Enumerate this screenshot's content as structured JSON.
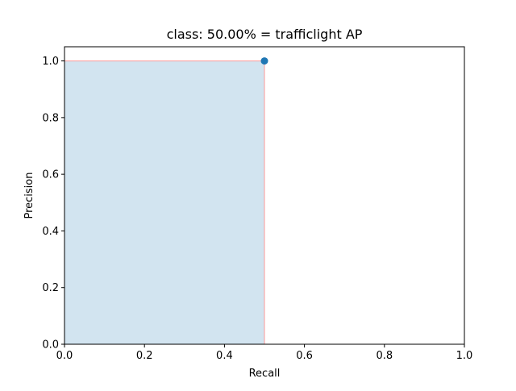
{
  "chart_data": {
    "type": "area",
    "title": "class: 50.00% = trafficlight AP",
    "xlabel": "Recall",
    "ylabel": "Precision",
    "xlim": [
      0.0,
      1.0
    ],
    "ylim": [
      0.0,
      1.05
    ],
    "xticks": [
      0.0,
      0.2,
      0.4,
      0.6,
      0.8,
      1.0
    ],
    "yticks": [
      0.0,
      0.2,
      0.4,
      0.6,
      0.8,
      1.0
    ],
    "xtick_labels": [
      "0.0",
      "0.2",
      "0.4",
      "0.6",
      "0.8",
      "1.0"
    ],
    "ytick_labels": [
      "0.0",
      "0.2",
      "0.4",
      "0.6",
      "0.8",
      "1.0"
    ],
    "grid": false,
    "points": [
      {
        "recall": 0.5,
        "precision": 1.0
      }
    ],
    "envelope": [
      {
        "recall": 0.0,
        "precision": 1.0
      },
      {
        "recall": 0.5,
        "precision": 1.0
      },
      {
        "recall": 0.5,
        "precision": 0.0
      }
    ],
    "colors": {
      "point": "#1f77b4",
      "fill": "#1f77b4",
      "envelope_line": "#ff9999"
    },
    "fill_opacity": 0.2
  }
}
